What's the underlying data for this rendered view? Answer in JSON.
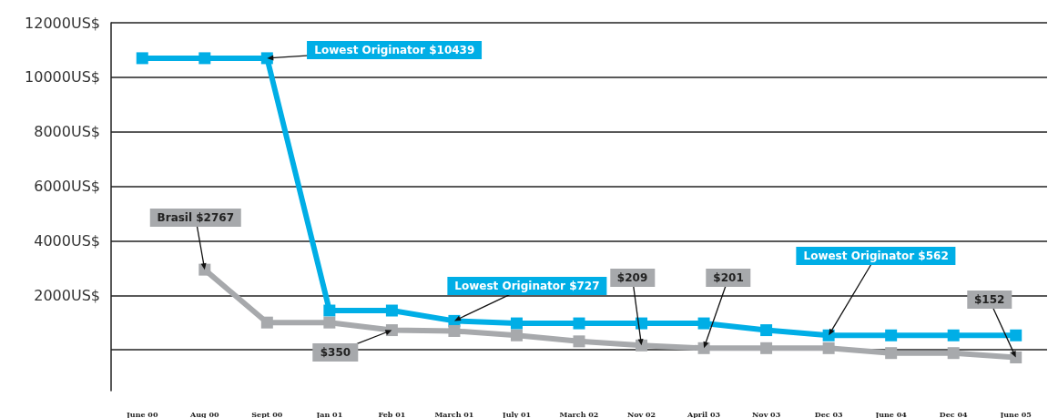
{
  "chart_data": {
    "type": "line",
    "categories": [
      "June 00",
      "Aug 00",
      "Sept 00",
      "Jan 01",
      "Feb 01",
      "March 01",
      "July 01",
      "March 02",
      "Nov 02",
      "April 03",
      "Nov 03",
      "Dec 03",
      "June 04",
      "Dec 04",
      "June 05"
    ],
    "series": [
      {
        "color": "#00aee6",
        "values": [
          10700,
          10700,
          10700,
          1440,
          1440,
          1060,
          970,
          970,
          970,
          970,
          720,
          530,
          530,
          530,
          530
        ]
      },
      {
        "color": "#a7a9ac",
        "values": [
          null,
          2940,
          1000,
          1000,
          720,
          690,
          530,
          310,
          160,
          60,
          60,
          60,
          -120,
          -120,
          -280
        ]
      }
    ],
    "ylim": [
      -1500,
      12000
    ],
    "yticks": [
      {
        "value": 0,
        "label": null
      },
      {
        "value": 2000,
        "label": "2000US$"
      },
      {
        "value": 4000,
        "label": "4000US$"
      },
      {
        "value": 6000,
        "label": "6000US$"
      },
      {
        "value": 8000,
        "label": "8000US$"
      },
      {
        "value": 10000,
        "label": "10000US$"
      },
      {
        "value": 12000,
        "label": "12000US$"
      }
    ],
    "grid": "y",
    "marker": "square",
    "line_style": "solid",
    "annotations": [
      {
        "text": "Lowest Originator $10439",
        "x": "Sept 00",
        "y": 10700
      },
      {
        "text": "Brasil $2767",
        "x": "Aug 00",
        "y": 2940
      },
      {
        "text": "$350",
        "x": "Feb 01",
        "y": 720
      },
      {
        "text": "Lowest Originator $727",
        "x": "March 01",
        "y": 1060
      },
      {
        "text": "$209",
        "x": "Nov 02",
        "y": 160
      },
      {
        "text": "$201",
        "x": "April 03",
        "y": 60
      },
      {
        "text": "Lowest Originator $562",
        "x": "Dec 03",
        "y": 530
      },
      {
        "text": "$152",
        "x": "June 05",
        "y": -280
      }
    ]
  }
}
